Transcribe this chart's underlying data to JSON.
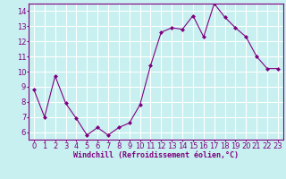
{
  "x": [
    0,
    1,
    2,
    3,
    4,
    5,
    6,
    7,
    8,
    9,
    10,
    11,
    12,
    13,
    14,
    15,
    16,
    17,
    18,
    19,
    20,
    21,
    22,
    23
  ],
  "y": [
    8.8,
    7.0,
    9.7,
    7.9,
    6.9,
    5.8,
    6.3,
    5.8,
    6.3,
    6.6,
    7.8,
    10.4,
    12.6,
    12.9,
    12.8,
    13.7,
    12.3,
    14.5,
    13.6,
    12.9,
    12.3,
    11.0,
    10.2,
    10.2
  ],
  "line_color": "#800080",
  "marker": "D",
  "marker_size": 2,
  "bg_color": "#c8f0f0",
  "grid_color": "#ffffff",
  "xlabel": "Windchill (Refroidissement éolien,°C)",
  "ylim": [
    5.5,
    14.5
  ],
  "xlim": [
    -0.5,
    23.5
  ],
  "yticks": [
    6,
    7,
    8,
    9,
    10,
    11,
    12,
    13,
    14
  ],
  "xticks": [
    0,
    1,
    2,
    3,
    4,
    5,
    6,
    7,
    8,
    9,
    10,
    11,
    12,
    13,
    14,
    15,
    16,
    17,
    18,
    19,
    20,
    21,
    22,
    23
  ],
  "axis_fontsize": 6,
  "tick_fontsize": 6
}
